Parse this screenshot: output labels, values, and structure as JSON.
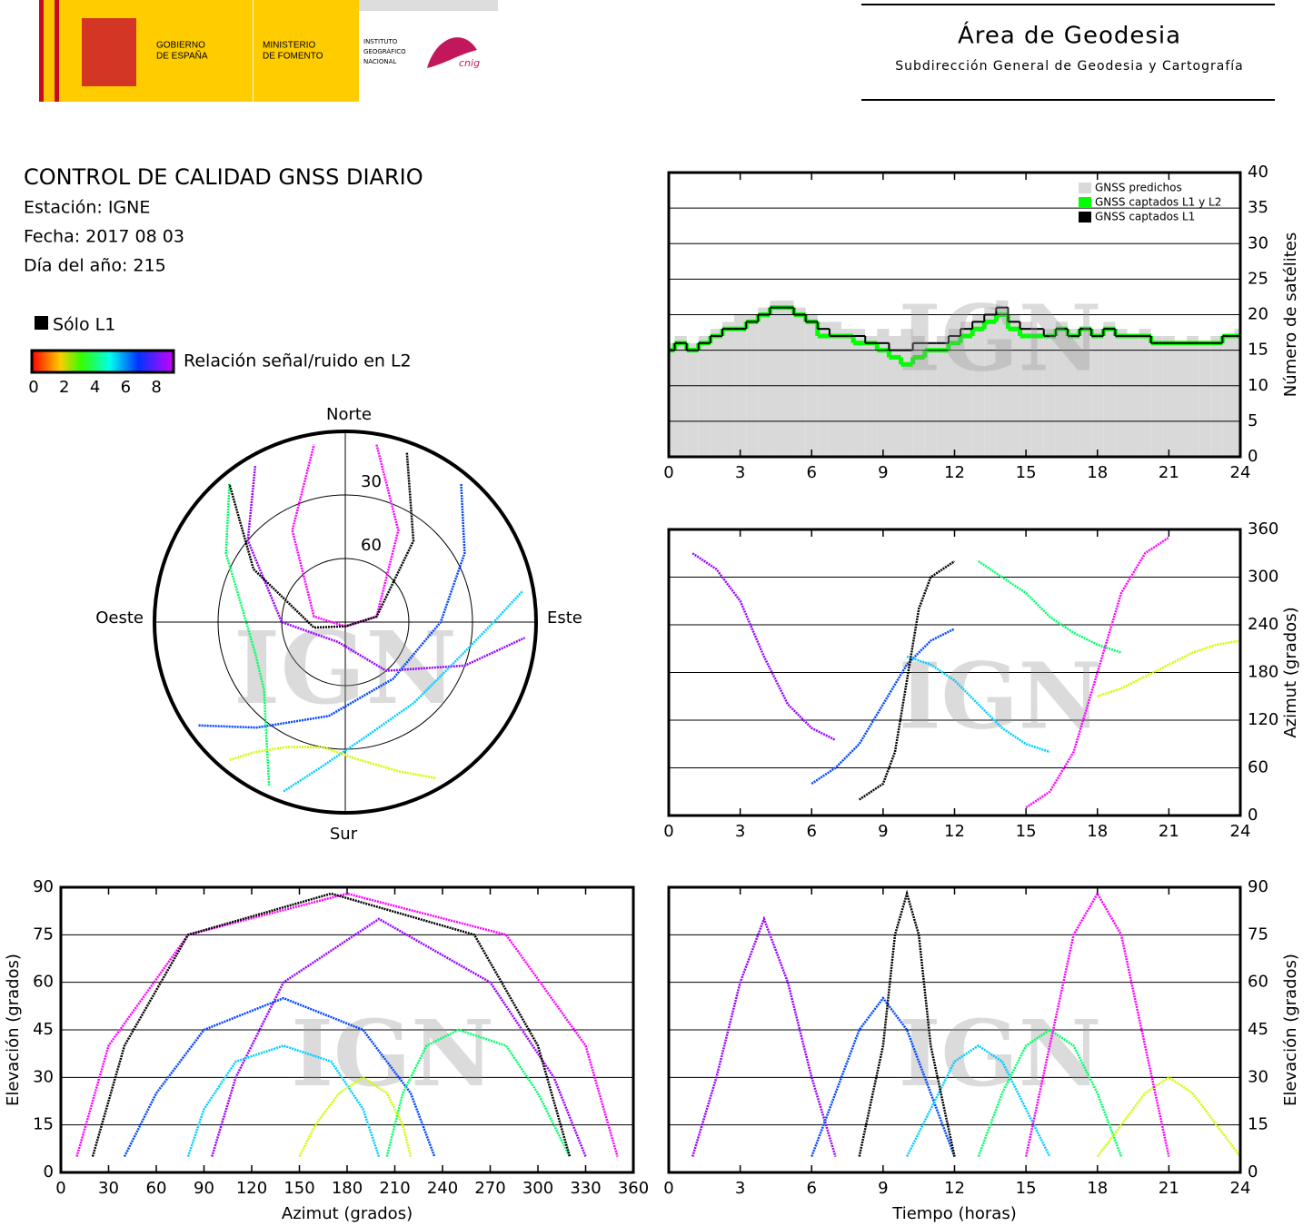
{
  "header": {
    "gov": [
      "GOBIERNO",
      "DE ESPAÑA"
    ],
    "ministry": [
      "MINISTERIO",
      "DE FOMENTO"
    ],
    "institute": [
      "INSTITUTO",
      "GEOGRÁFICO",
      "NACIONAL"
    ],
    "cnig": "cnig",
    "title": "Área de Geodesia",
    "subtitle": "Subdirección General de Geodesia y Cartografía"
  },
  "report": {
    "title": "CONTROL DE CALIDAD GNSS DIARIO",
    "station": "Estación: IGNE",
    "date": "Fecha: 2017 08 03",
    "doy": "Día del año: 215",
    "l1_only": "Sólo L1",
    "snr_label": "Relación señal/ruido en L2",
    "snr_ticks": [
      0,
      2,
      4,
      6,
      8
    ],
    "snr_range": [
      0,
      9
    ]
  },
  "watermark": "IGN",
  "chart_data": [
    {
      "type": "step",
      "ylabel": "Número de satélites",
      "xlim": [
        0,
        24
      ],
      "xticks": [
        0,
        3,
        6,
        9,
        12,
        15,
        18,
        21,
        24
      ],
      "ylim": [
        0,
        40
      ],
      "yticks": [
        0,
        5,
        10,
        15,
        20,
        25,
        30,
        35,
        40
      ],
      "grid": true,
      "legend": "upper right",
      "x": [
        0,
        0.5,
        1,
        1.5,
        2,
        2.5,
        3,
        3.5,
        4,
        4.5,
        5,
        5.5,
        6,
        6.5,
        7,
        7.5,
        8,
        8.5,
        9,
        9.5,
        10,
        10.5,
        11,
        11.5,
        12,
        12.5,
        13,
        13.5,
        14,
        14.5,
        15,
        15.5,
        16,
        16.5,
        17,
        17.5,
        18,
        18.5,
        19,
        19.5,
        20,
        20.5,
        21,
        21.5,
        22,
        22.5,
        23,
        23.5,
        24
      ],
      "series": [
        {
          "name": "GNSS predichos",
          "color": "#d9d9d9",
          "fill": true,
          "values": [
            16,
            17,
            16,
            17,
            18,
            19,
            20,
            20,
            21,
            22,
            22,
            21,
            20,
            19,
            19,
            18,
            18,
            17,
            18,
            17,
            18,
            17,
            16,
            17,
            18,
            19,
            20,
            21,
            22,
            20,
            19,
            18,
            18,
            19,
            18,
            18,
            18,
            19,
            18,
            17,
            18,
            17,
            17,
            16,
            17,
            16,
            17,
            17,
            18
          ]
        },
        {
          "name": "GNSS captados L1 y L2",
          "color": "#00ff00",
          "values": [
            15,
            16,
            15,
            16,
            17,
            18,
            18,
            19,
            20,
            21,
            21,
            20,
            19,
            17,
            17,
            17,
            16,
            16,
            15,
            14,
            13,
            14,
            15,
            15,
            16,
            17,
            18,
            19,
            20,
            18,
            17,
            17,
            17,
            18,
            17,
            18,
            17,
            18,
            17,
            17,
            17,
            16,
            16,
            16,
            16,
            16,
            16,
            17,
            17
          ]
        },
        {
          "name": "GNSS captados L1",
          "color": "#000000",
          "values": [
            15,
            16,
            15,
            16,
            17,
            18,
            18,
            19,
            20,
            21,
            21,
            20,
            19,
            18,
            17,
            17,
            17,
            16,
            16,
            15,
            15,
            16,
            16,
            16,
            17,
            18,
            19,
            20,
            21,
            19,
            18,
            18,
            17,
            18,
            17,
            18,
            17,
            18,
            17,
            17,
            17,
            16,
            16,
            16,
            16,
            16,
            16,
            17,
            17
          ]
        }
      ]
    },
    {
      "type": "polar",
      "directions": {
        "north": "Norte",
        "east": "Este",
        "south": "Sur",
        "west": "Oeste"
      },
      "rlim": [
        0,
        90
      ],
      "rticks": [
        30,
        60
      ],
      "series": [
        {
          "color": "#9900ff",
          "x": [
            330,
            310,
            270,
            200,
            140,
            110,
            95
          ],
          "values": [
            5,
            30,
            60,
            80,
            60,
            30,
            5
          ]
        },
        {
          "color": "#0044ff",
          "x": [
            40,
            60,
            90,
            140,
            190,
            220,
            235
          ],
          "values": [
            5,
            25,
            45,
            55,
            45,
            25,
            5
          ]
        },
        {
          "color": "#00ccff",
          "x": [
            200,
            190,
            170,
            140,
            110,
            90,
            80
          ],
          "values": [
            5,
            20,
            35,
            40,
            35,
            20,
            5
          ]
        },
        {
          "color": "#00ff66",
          "x": [
            320,
            300,
            280,
            250,
            230,
            215,
            205
          ],
          "values": [
            5,
            25,
            40,
            45,
            40,
            25,
            5
          ]
        },
        {
          "color": "#ccff00",
          "x": [
            150,
            160,
            175,
            190,
            205,
            215,
            220
          ],
          "values": [
            5,
            15,
            25,
            30,
            25,
            15,
            5
          ]
        },
        {
          "color": "#ff00ff",
          "x": [
            10,
            30,
            80,
            180,
            280,
            330,
            350
          ],
          "values": [
            5,
            40,
            75,
            88,
            75,
            40,
            5
          ]
        },
        {
          "color": "#000000",
          "x": [
            20,
            40,
            80,
            170,
            260,
            300,
            320
          ],
          "values": [
            5,
            40,
            75,
            88,
            75,
            40,
            5
          ]
        }
      ]
    },
    {
      "type": "line",
      "ylabel": "Azimut (grados)",
      "xlim": [
        0,
        24
      ],
      "xticks": [
        0,
        3,
        6,
        9,
        12,
        15,
        18,
        21,
        24
      ],
      "ylim": [
        0,
        360
      ],
      "yticks": [
        0,
        60,
        120,
        180,
        240,
        300,
        360
      ],
      "grid": true,
      "series": [
        {
          "color": "#9900ff",
          "x": [
            1,
            2,
            3,
            4,
            5,
            6,
            7
          ],
          "values": [
            330,
            310,
            270,
            200,
            140,
            110,
            95
          ]
        },
        {
          "color": "#0044ff",
          "x": [
            6,
            7,
            8,
            9,
            10,
            11,
            12
          ],
          "values": [
            40,
            60,
            90,
            140,
            190,
            220,
            235
          ]
        },
        {
          "color": "#00ccff",
          "x": [
            10,
            11,
            12,
            13,
            14,
            15,
            16
          ],
          "values": [
            200,
            190,
            170,
            140,
            110,
            90,
            80
          ]
        },
        {
          "color": "#00ff66",
          "x": [
            13,
            14,
            15,
            16,
            17,
            18,
            19
          ],
          "values": [
            320,
            300,
            280,
            250,
            230,
            215,
            205
          ]
        },
        {
          "color": "#ccff00",
          "x": [
            18,
            19,
            20,
            21,
            22,
            23,
            24
          ],
          "values": [
            150,
            160,
            175,
            190,
            205,
            215,
            220
          ]
        },
        {
          "color": "#ff00ff",
          "x": [
            15,
            16,
            17,
            18,
            19,
            20,
            21
          ],
          "values": [
            10,
            30,
            80,
            180,
            280,
            330,
            350
          ]
        },
        {
          "color": "#000000",
          "x": [
            8,
            9,
            9.5,
            10,
            10.5,
            11,
            12
          ],
          "values": [
            20,
            40,
            80,
            170,
            260,
            300,
            320
          ]
        }
      ]
    },
    {
      "type": "line",
      "xlabel": "Azimut (grados)",
      "ylabel": "Elevación (grados)",
      "xlim": [
        0,
        360
      ],
      "xticks": [
        0,
        30,
        60,
        90,
        120,
        150,
        180,
        210,
        240,
        270,
        300,
        330,
        360
      ],
      "ylim": [
        0,
        90
      ],
      "yticks": [
        0,
        15,
        30,
        45,
        60,
        75,
        90
      ],
      "grid": true,
      "series": [
        {
          "color": "#9900ff",
          "x": [
            95,
            110,
            140,
            200,
            270,
            310,
            330
          ],
          "values": [
            5,
            30,
            60,
            80,
            60,
            30,
            5
          ]
        },
        {
          "color": "#0044ff",
          "x": [
            40,
            60,
            90,
            140,
            190,
            220,
            235
          ],
          "values": [
            5,
            25,
            45,
            55,
            45,
            25,
            5
          ]
        },
        {
          "color": "#00ccff",
          "x": [
            80,
            90,
            110,
            140,
            170,
            190,
            200
          ],
          "values": [
            5,
            20,
            35,
            40,
            35,
            20,
            5
          ]
        },
        {
          "color": "#00ff66",
          "x": [
            205,
            215,
            230,
            250,
            280,
            300,
            320
          ],
          "values": [
            5,
            25,
            40,
            45,
            40,
            25,
            5
          ]
        },
        {
          "color": "#ccff00",
          "x": [
            150,
            160,
            175,
            190,
            205,
            215,
            220
          ],
          "values": [
            5,
            15,
            25,
            30,
            25,
            15,
            5
          ]
        },
        {
          "color": "#ff00ff",
          "x": [
            10,
            30,
            80,
            180,
            280,
            330,
            350
          ],
          "values": [
            5,
            40,
            75,
            88,
            75,
            40,
            5
          ]
        },
        {
          "color": "#000000",
          "x": [
            20,
            40,
            80,
            170,
            260,
            300,
            320
          ],
          "values": [
            5,
            40,
            75,
            88,
            75,
            40,
            5
          ]
        }
      ]
    },
    {
      "type": "line",
      "xlabel": "Tiempo (horas)",
      "ylabel": "Elevación (grados)",
      "xlim": [
        0,
        24
      ],
      "xticks": [
        0,
        3,
        6,
        9,
        12,
        15,
        18,
        21,
        24
      ],
      "ylim": [
        0,
        90
      ],
      "yticks": [
        0,
        15,
        30,
        45,
        60,
        75,
        90
      ],
      "grid": true,
      "series": [
        {
          "color": "#9900ff",
          "x": [
            1,
            2,
            3,
            4,
            5,
            6,
            7
          ],
          "values": [
            5,
            30,
            60,
            80,
            60,
            30,
            5
          ]
        },
        {
          "color": "#0044ff",
          "x": [
            6,
            7,
            8,
            9,
            10,
            11,
            12
          ],
          "values": [
            5,
            25,
            45,
            55,
            45,
            25,
            5
          ]
        },
        {
          "color": "#00ccff",
          "x": [
            10,
            11,
            12,
            13,
            14,
            15,
            16
          ],
          "values": [
            5,
            20,
            35,
            40,
            35,
            20,
            5
          ]
        },
        {
          "color": "#00ff66",
          "x": [
            13,
            14,
            15,
            16,
            17,
            18,
            19
          ],
          "values": [
            5,
            25,
            40,
            45,
            40,
            25,
            5
          ]
        },
        {
          "color": "#ccff00",
          "x": [
            18,
            19,
            20,
            21,
            22,
            23,
            24
          ],
          "values": [
            5,
            15,
            25,
            30,
            25,
            15,
            5
          ]
        },
        {
          "color": "#ff00ff",
          "x": [
            15,
            16,
            17,
            18,
            19,
            20,
            21
          ],
          "values": [
            5,
            40,
            75,
            88,
            75,
            40,
            5
          ]
        },
        {
          "color": "#000000",
          "x": [
            8,
            9,
            9.5,
            10,
            10.5,
            11,
            12
          ],
          "values": [
            5,
            40,
            75,
            88,
            75,
            40,
            5
          ]
        }
      ]
    }
  ]
}
